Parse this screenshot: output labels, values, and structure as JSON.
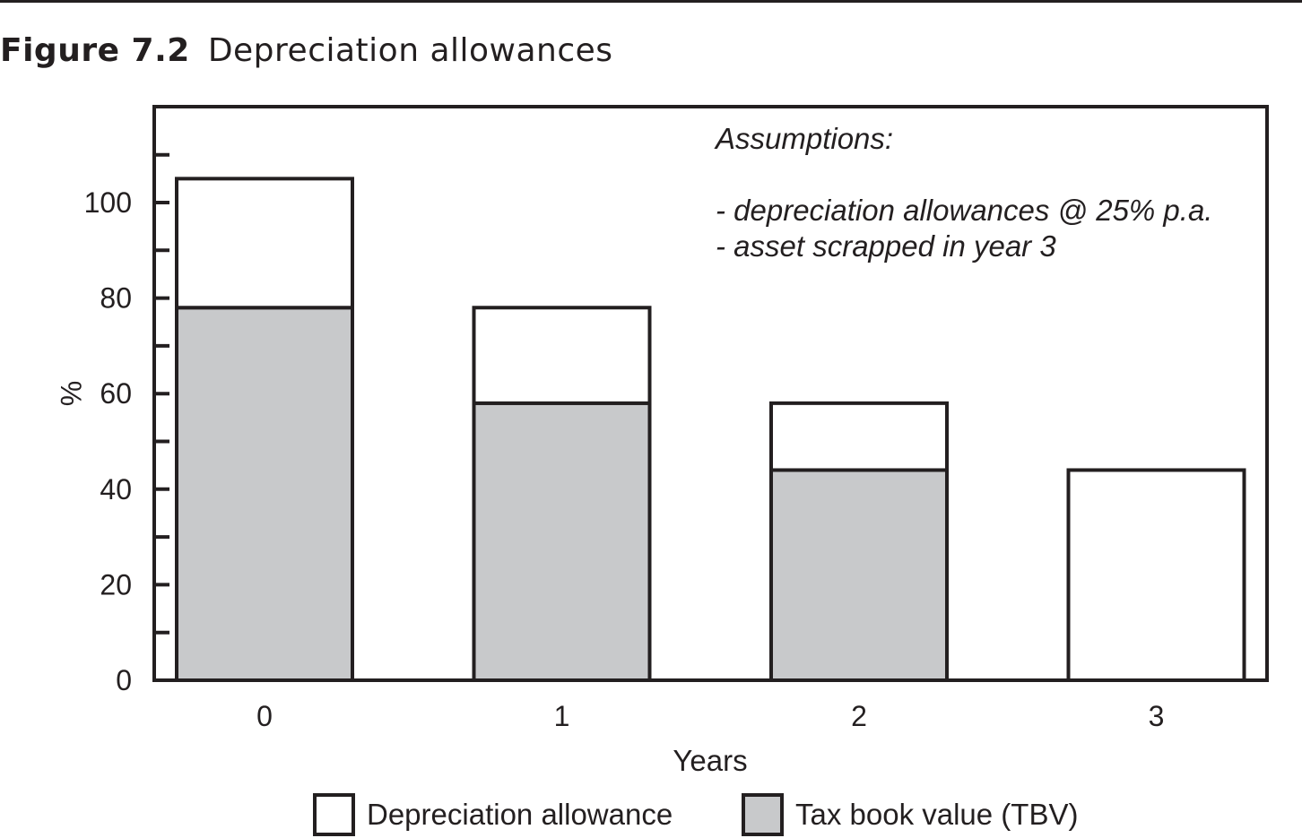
{
  "figure": {
    "number": "Figure 7.2",
    "title": "Depreciation allowances"
  },
  "chart_data": {
    "type": "bar",
    "stacked": true,
    "categories": [
      "0",
      "1",
      "2",
      "3"
    ],
    "series": [
      {
        "name": "Tax book value (TBV)",
        "color": "#c8c9cb",
        "values": [
          78,
          58,
          44,
          0
        ]
      },
      {
        "name": "Depreciation allowance",
        "color": "#ffffff",
        "values": [
          27,
          20,
          14,
          44
        ]
      }
    ],
    "xlabel": "Years",
    "ylabel": "%",
    "ylim": [
      0,
      120
    ],
    "yticks": [
      0,
      20,
      40,
      60,
      80,
      100
    ],
    "grid": false,
    "legend": "bottom",
    "annotation": {
      "heading": "Assumptions:",
      "lines": [
        "- depreciation allowances @ 25% p.a.",
        "- asset scrapped in year 3"
      ]
    }
  }
}
